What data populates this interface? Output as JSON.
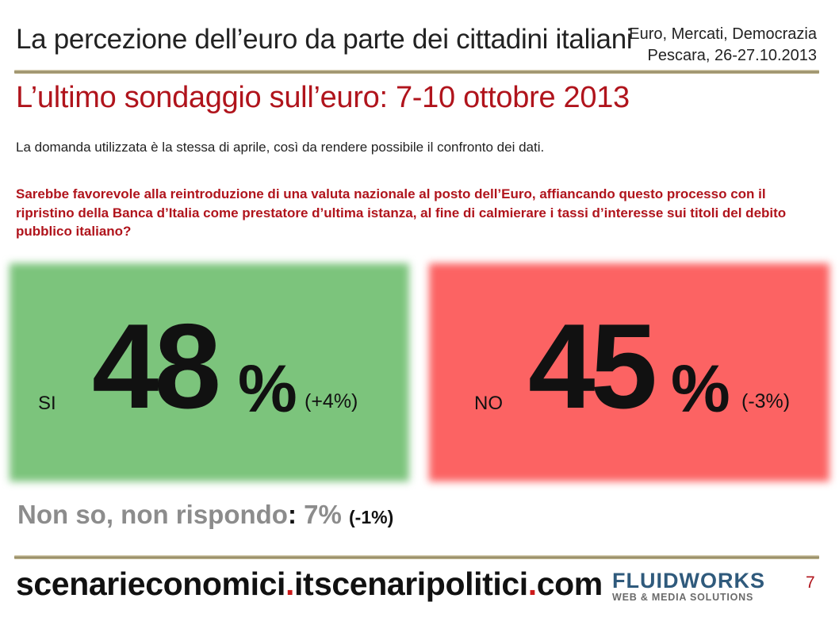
{
  "header": {
    "title": "La percezione dell’euro da parte dei cittadini italiani",
    "event_line1": "Euro, Mercati, Democrazia",
    "event_line2": "Pescara, 26-27.10.2013"
  },
  "slide": {
    "subtitle": "L’ultimo sondaggio sull’euro: 7-10 ottobre 2013",
    "intro": "La domanda utilizzata è la stessa di aprile, così da rendere possibile il confronto dei dati.",
    "question": "Sarebbe favorevole alla reintroduzione di una valuta nazionale al posto dell’Euro, affiancando questo processo con il ripristino della Banca d’Italia come prestatore d’ultima istanza, al fine di calmierare i tassi d’interesse sui titoli del debito pubblico italiano?"
  },
  "results": {
    "yes": {
      "label": "SI",
      "value": "48",
      "unit": "%",
      "change": "(+4%)",
      "color": "#7cc47c"
    },
    "no": {
      "label": "NO",
      "value": "45",
      "unit": "%",
      "change": "(-3%)",
      "color": "#fc6363"
    },
    "dont_know": {
      "label": "Non so, non rispondo",
      "colon": ":",
      "value": "7%",
      "change": "(-1%)"
    }
  },
  "footer": {
    "site1_name": "scenarieconomici",
    "site1_dot": ".",
    "site1_tld": "it",
    "site2_name": "scenaripolitici",
    "site2_dot": ".",
    "site2_tld": "com",
    "logo_main": "FLUIDWORKS",
    "logo_sub": "WEB & MEDIA SOLUTIONS",
    "page_number": "7"
  }
}
